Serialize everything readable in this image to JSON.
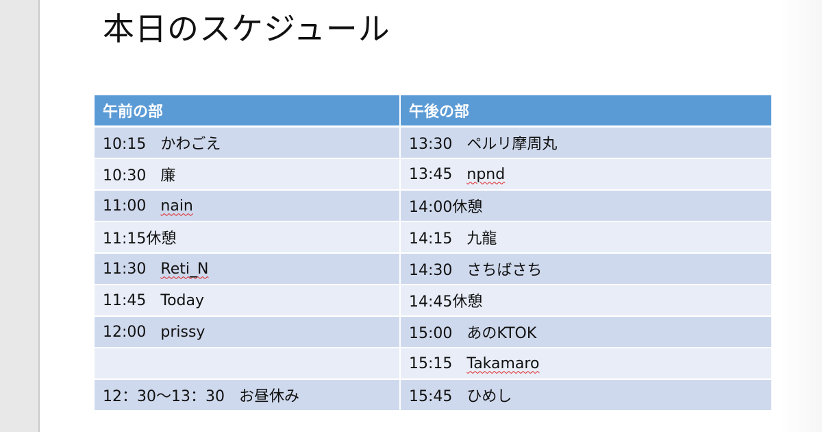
{
  "slide": {
    "title": "本日のスケジュール"
  },
  "table": {
    "headers": [
      "午前の部",
      "午後の部"
    ],
    "rows": [
      {
        "am_time": "10:15",
        "am_act": "かわごえ",
        "pm_time": "13:30",
        "pm_act": "ペルリ摩周丸"
      },
      {
        "am_time": "10:30",
        "am_act": "廉",
        "pm_time": "13:45",
        "pm_act": "npnd"
      },
      {
        "am_time": "11:00",
        "am_act": "nain",
        "pm_time": "14:00休憩",
        "pm_act": ""
      },
      {
        "am_time": "11:15休憩",
        "am_act": "",
        "pm_time": "14:15",
        "pm_act": "九龍"
      },
      {
        "am_time": "11:30",
        "am_act": "Reti_N",
        "pm_time": "14:30",
        "pm_act": "さちばさち"
      },
      {
        "am_time": "11:45",
        "am_act": "Today",
        "pm_time": "14:45休憩",
        "pm_act": ""
      },
      {
        "am_time": "12:00",
        "am_act": "prissy",
        "pm_time": "15:00",
        "pm_act": "あのKTOK"
      },
      {
        "am_time": "",
        "am_act": "",
        "pm_time": "15:15",
        "pm_act": "Takamaro"
      },
      {
        "am_time": "12：30～13：30",
        "am_act": "お昼休み",
        "pm_time": "15:45",
        "pm_act": "ひめし"
      }
    ]
  },
  "colors": {
    "header_bg": "#5b9bd5",
    "row_odd_bg": "#cfd9ed",
    "row_even_bg": "#e8edf7",
    "spellcheck_underline": "#e02020"
  }
}
